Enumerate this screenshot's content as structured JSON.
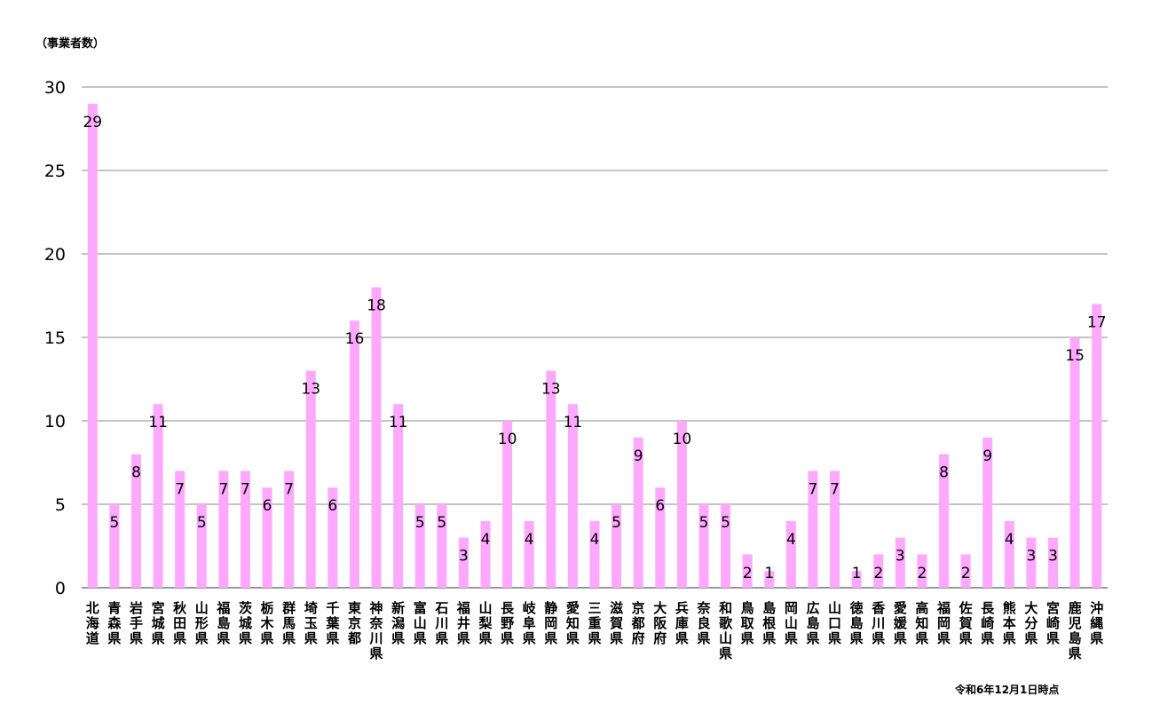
{
  "chart_data": {
    "type": "bar",
    "ylabel": "（事業者数）",
    "note": "令和6年12月1日時点",
    "ylim": [
      0,
      30
    ],
    "yticks": [
      0,
      5,
      10,
      15,
      20,
      25,
      30
    ],
    "grid": true,
    "bar_color": "#FFA8FF",
    "categories": [
      "北海道",
      "青森県",
      "岩手県",
      "宮城県",
      "秋田県",
      "山形県",
      "福島県",
      "茨城県",
      "栃木県",
      "群馬県",
      "埼玉県",
      "千葉県",
      "東京都",
      "神奈川県",
      "新潟県",
      "富山県",
      "石川県",
      "福井県",
      "山梨県",
      "長野県",
      "岐阜県",
      "静岡県",
      "愛知県",
      "三重県",
      "滋賀県",
      "京都府",
      "大阪府",
      "兵庫県",
      "奈良県",
      "和歌山県",
      "鳥取県",
      "島根県",
      "岡山県",
      "広島県",
      "山口県",
      "徳島県",
      "香川県",
      "愛媛県",
      "高知県",
      "福岡県",
      "佐賀県",
      "長崎県",
      "熊本県",
      "大分県",
      "宮崎県",
      "鹿児島県",
      "沖縄県"
    ],
    "values": [
      29,
      5,
      8,
      11,
      7,
      5,
      7,
      7,
      6,
      7,
      13,
      6,
      16,
      18,
      11,
      5,
      5,
      3,
      4,
      10,
      4,
      13,
      11,
      4,
      5,
      9,
      6,
      10,
      5,
      5,
      2,
      1,
      4,
      7,
      7,
      1,
      2,
      3,
      2,
      8,
      2,
      9,
      4,
      3,
      3,
      15,
      17
    ]
  }
}
